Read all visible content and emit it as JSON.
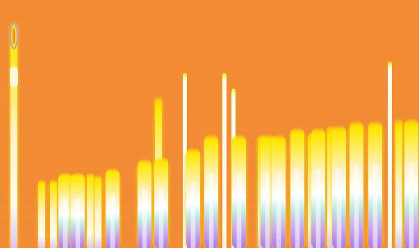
{
  "image": {
    "background": "#f18b34",
    "palette": {
      "orange": "#f18b34",
      "yellow": "#ffe600",
      "cream": "#fff2c8",
      "white": "#fffcee",
      "cyan": "#bfe9e2",
      "lavender": "#c9a3ea",
      "violet": "#a77ae6"
    },
    "bars": [
      {
        "level": 1.0,
        "kind": "thin",
        "tip": "ring"
      },
      {
        "level": 0.3,
        "kind": "thin"
      },
      {
        "level": 0.3,
        "kind": "thin"
      },
      {
        "level": 0.33,
        "kind": "wide"
      },
      {
        "level": 0.33,
        "kind": "wide"
      },
      {
        "level": 0.33,
        "kind": "thin"
      },
      {
        "level": 0.32,
        "kind": "thin"
      },
      {
        "level": 0.35,
        "kind": "wide"
      },
      {
        "level": 0.39,
        "kind": "wide"
      },
      {
        "level": 0.67,
        "kind": "thin"
      },
      {
        "level": 0.4,
        "kind": "wide"
      },
      {
        "level": 0.77,
        "kind": "line"
      },
      {
        "level": 0.44,
        "kind": "wide"
      },
      {
        "level": 0.5,
        "kind": "wide"
      },
      {
        "level": 0.77,
        "kind": "line"
      },
      {
        "level": 0.7,
        "kind": "line"
      },
      {
        "level": 0.5,
        "kind": "wide"
      },
      {
        "level": 0.5,
        "kind": "thin"
      },
      {
        "level": 0.5,
        "kind": "wide"
      },
      {
        "level": 0.5,
        "kind": "wide"
      },
      {
        "level": 0.53,
        "kind": "wide"
      },
      {
        "level": 0.51,
        "kind": "thin"
      },
      {
        "level": 0.53,
        "kind": "wide"
      },
      {
        "level": 0.54,
        "kind": "thin"
      },
      {
        "level": 0.54,
        "kind": "wide"
      },
      {
        "level": 0.56,
        "kind": "wide"
      },
      {
        "level": 0.56,
        "kind": "wide"
      },
      {
        "level": 0.82,
        "kind": "line"
      },
      {
        "level": 0.57,
        "kind": "thin"
      },
      {
        "level": 0.57,
        "kind": "wide"
      }
    ]
  }
}
